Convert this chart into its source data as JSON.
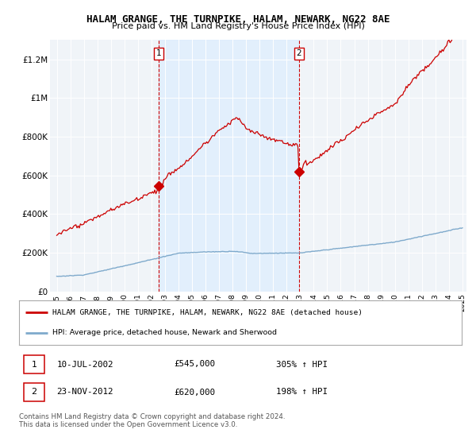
{
  "title": "HALAM GRANGE, THE TURNPIKE, HALAM, NEWARK, NG22 8AE",
  "subtitle": "Price paid vs. HM Land Registry's House Price Index (HPI)",
  "ylabel_ticks": [
    "£0",
    "£200K",
    "£400K",
    "£600K",
    "£800K",
    "£1M",
    "£1.2M"
  ],
  "ylabel_values": [
    0,
    200000,
    400000,
    600000,
    800000,
    1000000,
    1200000
  ],
  "ylim": [
    0,
    1300000
  ],
  "transaction1_x": 2002.53,
  "transaction2_x": 2012.9,
  "transaction1_price": 545000,
  "transaction2_price": 620000,
  "hpi_line_color": "#7faacc",
  "price_line_color": "#cc0000",
  "dashed_line_color": "#cc0000",
  "shade_color": "#ddeeff",
  "legend_label_price": "HALAM GRANGE, THE TURNPIKE, HALAM, NEWARK, NG22 8AE (detached house)",
  "legend_label_hpi": "HPI: Average price, detached house, Newark and Sherwood",
  "footnote": "Contains HM Land Registry data © Crown copyright and database right 2024.\nThis data is licensed under the Open Government Licence v3.0.",
  "bg_color": "#ffffff",
  "plot_bg_color": "#f0f4f8"
}
